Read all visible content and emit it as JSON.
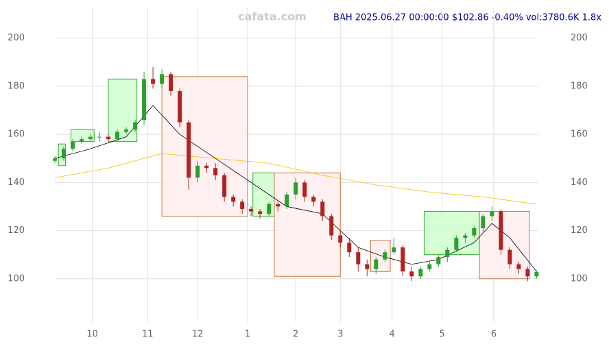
{
  "chart_data": {
    "type": "candlestick",
    "watermark": "cafata.com",
    "title": "BAH 2025.06.27 00:00:00 $102.86 -0.40% vol:3780.6K 1.8x",
    "x": [
      0,
      5,
      10,
      15,
      20,
      25,
      30,
      35,
      40,
      45,
      50,
      55,
      60,
      65,
      70,
      75,
      80,
      85,
      90,
      95,
      100,
      105,
      110,
      115,
      120,
      125,
      130,
      135,
      140,
      145,
      150,
      155,
      160,
      165,
      170,
      175,
      180,
      185,
      190,
      195,
      200,
      205,
      210,
      215,
      220,
      225,
      230,
      235,
      240,
      245,
      250,
      255,
      260,
      265,
      270
    ],
    "open": [
      149,
      150,
      154,
      157,
      158,
      159,
      159,
      158,
      161,
      162,
      166,
      183,
      181,
      185,
      178,
      165,
      142,
      147,
      146,
      143,
      134,
      132,
      129,
      128,
      127,
      131,
      130,
      135,
      140,
      134,
      132,
      126,
      118,
      115,
      111,
      106,
      104,
      108,
      111,
      113,
      103,
      101,
      104,
      106,
      109,
      112,
      117,
      118,
      121,
      126,
      128,
      112,
      106,
      104,
      101
    ],
    "high": [
      151,
      155,
      158,
      159,
      160,
      161,
      160,
      162,
      163,
      166,
      186,
      188,
      187,
      186,
      179,
      166,
      149,
      148,
      148,
      144,
      135,
      133,
      130,
      129,
      132,
      132,
      136,
      142,
      141,
      135,
      133,
      127,
      120,
      117,
      113,
      108,
      109,
      112,
      117,
      114,
      105,
      105,
      107,
      110,
      113,
      118,
      119,
      122,
      127,
      130,
      129,
      113,
      107,
      105,
      103.5
    ],
    "low": [
      148,
      149,
      153,
      156,
      157,
      157,
      157,
      157,
      160,
      161,
      164,
      179,
      179,
      176,
      163,
      137,
      140,
      144,
      141,
      132,
      130,
      127,
      126,
      125,
      126,
      128,
      129,
      133,
      132,
      130,
      124,
      116,
      113,
      109,
      103,
      101,
      102,
      107,
      110,
      101,
      99,
      100,
      103,
      105,
      107,
      111,
      115,
      117,
      119,
      124,
      110,
      104,
      102,
      99,
      100
    ],
    "close": [
      150,
      154,
      157,
      158,
      159,
      159,
      158,
      161,
      162,
      165,
      183,
      181,
      185,
      178,
      165,
      142,
      147,
      146,
      143,
      134,
      132,
      129,
      128,
      127,
      131,
      130,
      135,
      140,
      134,
      132,
      126,
      118,
      115,
      111,
      106,
      104,
      108,
      111,
      113,
      103,
      101,
      104,
      106,
      109,
      112,
      117,
      118,
      121,
      126,
      128,
      112,
      106,
      104,
      101,
      102.86
    ],
    "up_color": "#2ca02c",
    "down_color": "#b22222",
    "lines": [
      {
        "color": "#f5c000",
        "x": [
          0,
          30,
          60,
          90,
          120,
          150,
          180,
          210,
          240,
          270
        ],
        "values": [
          142,
          146,
          152,
          150,
          148,
          143,
          139,
          136,
          134,
          131
        ]
      },
      {
        "color": "#000000",
        "x": [
          0,
          20,
          40,
          55,
          70,
          90,
          110,
          130,
          150,
          170,
          185,
          200,
          215,
          235,
          245,
          255,
          270
        ],
        "values": [
          150,
          154,
          159,
          172,
          160,
          150,
          140,
          130,
          127,
          113,
          109,
          106,
          108,
          115,
          123,
          117,
          103
        ]
      }
    ],
    "boxes": [
      {
        "color": "green",
        "x": [
          2,
          6
        ],
        "y": [
          147,
          156
        ]
      },
      {
        "color": "green",
        "x": [
          9,
          22
        ],
        "y": [
          157,
          162
        ]
      },
      {
        "color": "green",
        "x": [
          30,
          46
        ],
        "y": [
          157,
          183
        ]
      },
      {
        "color": "red",
        "x": [
          60,
          108
        ],
        "y": [
          126,
          184
        ]
      },
      {
        "color": "green",
        "x": [
          111,
          123
        ],
        "y": [
          126,
          144
        ]
      },
      {
        "color": "red",
        "x": [
          123,
          160
        ],
        "y": [
          101,
          144
        ]
      },
      {
        "color": "red",
        "x": [
          177,
          188
        ],
        "y": [
          103,
          116
        ]
      },
      {
        "color": "green",
        "x": [
          207,
          238
        ],
        "y": [
          110,
          128
        ]
      },
      {
        "color": "red",
        "x": [
          238,
          266
        ],
        "y": [
          100,
          128
        ]
      }
    ],
    "xlim": [
      0,
      271
    ],
    "xticks": [
      {
        "value": 21,
        "label": "10"
      },
      {
        "value": 52,
        "label": "11"
      },
      {
        "value": 80,
        "label": "12"
      },
      {
        "value": 108,
        "label": "1"
      },
      {
        "value": 135,
        "label": "2"
      },
      {
        "value": 160,
        "label": "3"
      },
      {
        "value": 189,
        "label": "4"
      },
      {
        "value": 217,
        "label": "5"
      },
      {
        "value": 246,
        "label": "6"
      }
    ],
    "ylim": [
      82,
      213
    ],
    "yticks": [
      100,
      120,
      140,
      160,
      180,
      200
    ],
    "grid": true
  }
}
